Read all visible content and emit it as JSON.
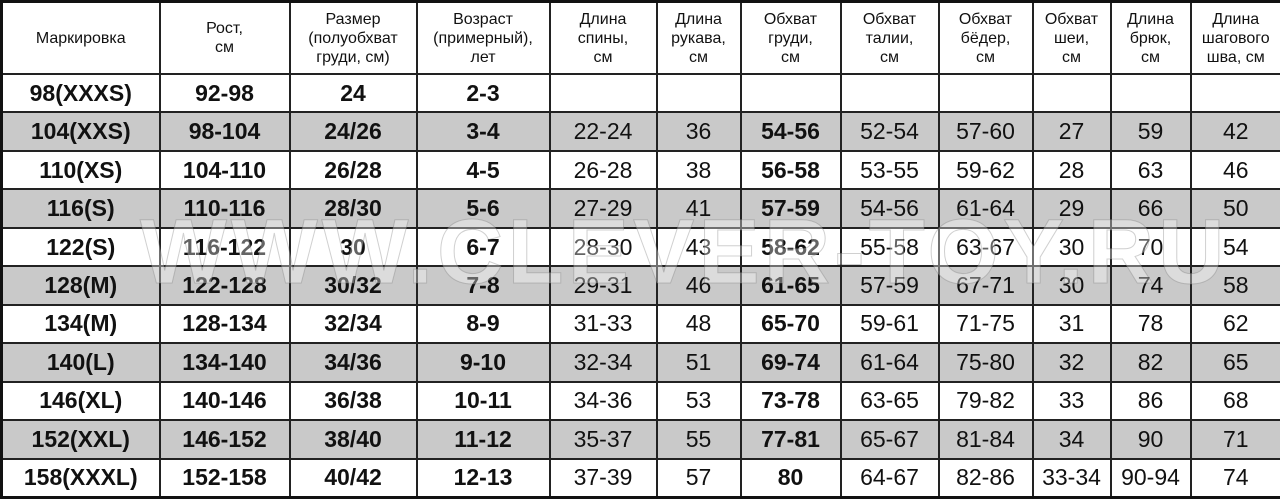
{
  "headers": [
    [
      "Маркировка"
    ],
    [
      "Рост,",
      "см"
    ],
    [
      "Размер",
      "(полуобхват",
      "груди, см)"
    ],
    [
      "Возраст",
      "(примерный),",
      "лет"
    ],
    [
      "Длина",
      "спины,",
      "см"
    ],
    [
      "Длина",
      "рукава,",
      "см"
    ],
    [
      "Обхват",
      "груди,",
      "см"
    ],
    [
      "Обхват",
      "талии,",
      "см"
    ],
    [
      "Обхват",
      "бёдер,",
      "см"
    ],
    [
      "Обхват",
      "шеи,",
      "см"
    ],
    [
      "Длина",
      "брюк,",
      "см"
    ],
    [
      "Длина",
      "шагового",
      "шва, см"
    ]
  ],
  "rows": [
    [
      "98(XXXS)",
      "92-98",
      "24",
      "2-3",
      "",
      "",
      "",
      "",
      "",
      "",
      "",
      ""
    ],
    [
      "104(XXS)",
      "98-104",
      "24/26",
      "3-4",
      "22-24",
      "36",
      "54-56",
      "52-54",
      "57-60",
      "27",
      "59",
      "42"
    ],
    [
      "110(XS)",
      "104-110",
      "26/28",
      "4-5",
      "26-28",
      "38",
      "56-58",
      "53-55",
      "59-62",
      "28",
      "63",
      "46"
    ],
    [
      "116(S)",
      "110-116",
      "28/30",
      "5-6",
      "27-29",
      "41",
      "57-59",
      "54-56",
      "61-64",
      "29",
      "66",
      "50"
    ],
    [
      "122(S)",
      "116-122",
      "30",
      "6-7",
      "28-30",
      "43",
      "58-62",
      "55-58",
      "63-67",
      "30",
      "70",
      "54"
    ],
    [
      "128(M)",
      "122-128",
      "30/32",
      "7-8",
      "29-31",
      "46",
      "61-65",
      "57-59",
      "67-71",
      "30",
      "74",
      "58"
    ],
    [
      "134(M)",
      "128-134",
      "32/34",
      "8-9",
      "31-33",
      "48",
      "65-70",
      "59-61",
      "71-75",
      "31",
      "78",
      "62"
    ],
    [
      "140(L)",
      "134-140",
      "34/36",
      "9-10",
      "32-34",
      "51",
      "69-74",
      "61-64",
      "75-80",
      "32",
      "82",
      "65"
    ],
    [
      "146(XL)",
      "140-146",
      "36/38",
      "10-11",
      "34-36",
      "53",
      "73-78",
      "63-65",
      "79-82",
      "33",
      "86",
      "68"
    ],
    [
      "152(XXL)",
      "146-152",
      "38/40",
      "11-12",
      "35-37",
      "55",
      "77-81",
      "65-67",
      "81-84",
      "34",
      "90",
      "71"
    ],
    [
      "158(XXXL)",
      "152-158",
      "40/42",
      "12-13",
      "37-39",
      "57",
      "80",
      "64-67",
      "82-86",
      "33-34",
      "90-94",
      "74"
    ]
  ],
  "watermark": "WWW.CLEVER-TOY.RU",
  "colors": {
    "stripe": "#c9c9c9",
    "border": "#222222"
  }
}
